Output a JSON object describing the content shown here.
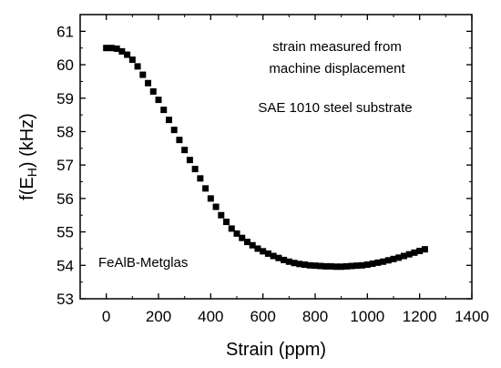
{
  "chart_data": {
    "type": "scatter",
    "xlabel": "Strain (ppm)",
    "ylabel_main": "f(E",
    "ylabel_sub": "H",
    "ylabel_tail": ") (kHz)",
    "xlim": [
      -100,
      1400
    ],
    "ylim": [
      53,
      61.5
    ],
    "xticks": [
      "0",
      "200",
      "400",
      "600",
      "800",
      "1000",
      "1200",
      "1400"
    ],
    "yticks": [
      "53",
      "54",
      "55",
      "56",
      "57",
      "58",
      "59",
      "60",
      "61"
    ],
    "xtick_values": [
      0,
      200,
      400,
      600,
      800,
      1000,
      1200,
      1400
    ],
    "ytick_values": [
      53,
      54,
      55,
      56,
      57,
      58,
      59,
      60,
      61
    ],
    "annotations": {
      "line1": "strain measured from",
      "line2": "machine displacement",
      "substrate": "SAE 1010 steel substrate",
      "material": "FeAlB-Metglas"
    },
    "marker": "square",
    "marker_color": "#000000",
    "series": [
      {
        "x": [
          0,
          20,
          40,
          60,
          80,
          100,
          120,
          140,
          160,
          180,
          200,
          220,
          240,
          260,
          280,
          300,
          320,
          340,
          360,
          380,
          400,
          420,
          440,
          460,
          480,
          500,
          520,
          540,
          560,
          580,
          600,
          620,
          640,
          660,
          680,
          700,
          720,
          740,
          760,
          780,
          800,
          820,
          840,
          860,
          880,
          900,
          920,
          940,
          960,
          980,
          1000,
          1020,
          1040,
          1060,
          1080,
          1100,
          1120,
          1140,
          1160,
          1180,
          1200,
          1220
        ],
        "y": [
          60.5,
          60.5,
          60.48,
          60.4,
          60.3,
          60.15,
          59.95,
          59.7,
          59.45,
          59.2,
          58.95,
          58.65,
          58.35,
          58.05,
          57.75,
          57.45,
          57.15,
          56.88,
          56.6,
          56.3,
          56.0,
          55.75,
          55.5,
          55.3,
          55.1,
          54.95,
          54.82,
          54.7,
          54.6,
          54.5,
          54.42,
          54.35,
          54.28,
          54.22,
          54.16,
          54.11,
          54.07,
          54.04,
          54.02,
          54.0,
          53.99,
          53.98,
          53.97,
          53.97,
          53.96,
          53.96,
          53.97,
          53.98,
          53.99,
          54.0,
          54.02,
          54.05,
          54.08,
          54.11,
          54.15,
          54.19,
          54.23,
          54.28,
          54.33,
          54.38,
          54.43,
          54.48
        ]
      }
    ]
  }
}
